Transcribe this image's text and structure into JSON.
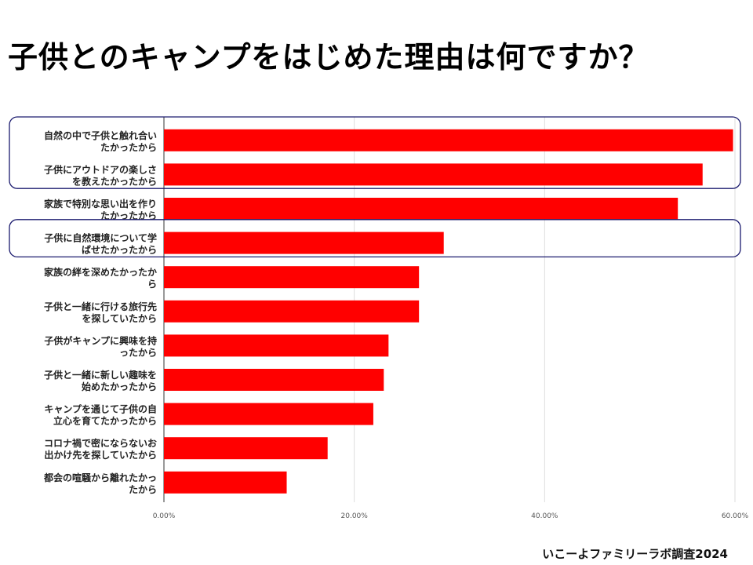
{
  "title": "子供とのキャンプをはじめた理由は何ですか？",
  "source": "いこーよファミリーラボ調査2024",
  "chart_data": {
    "type": "bar",
    "orientation": "horizontal",
    "categories": [
      [
        "自然の中で子供と触れ合い",
        "たかったから"
      ],
      [
        "子供にアウトドアの楽しさ",
        "を教えたかったから"
      ],
      [
        "家族で特別な思い出を作り",
        "たかったから"
      ],
      [
        "子供に自然環境について学",
        "ばせたかったから"
      ],
      [
        "家族の絆を深めたかったか",
        "ら"
      ],
      [
        "子供と一緒に行ける旅行先",
        "を探していたから"
      ],
      [
        "子供がキャンプに興味を持",
        "ったから"
      ],
      [
        "子供と一緒に新しい趣味を",
        "始めたかったから"
      ],
      [
        "キャンプを通じて子供の自",
        "立心を育てたかったから"
      ],
      [
        "コロナ禍で密にならないお",
        "出かけ先を探していたから"
      ],
      [
        "都会の喧騒から離れたかっ",
        "たから"
      ]
    ],
    "values": [
      59.8,
      56.6,
      54.0,
      29.4,
      26.8,
      26.8,
      23.6,
      23.1,
      22.0,
      17.2,
      12.9
    ],
    "value_unit": "%",
    "xlim": [
      0,
      60
    ],
    "xticks": [
      0,
      20,
      40,
      60
    ],
    "xtick_labels": [
      "0.00%",
      "20.00%",
      "40.00%",
      "60.00%"
    ],
    "grid": true,
    "bar_color": "#ff0000",
    "highlight_color": "#1a1a6e",
    "highlighted_groups": [
      [
        0,
        1
      ],
      [
        3
      ]
    ]
  }
}
